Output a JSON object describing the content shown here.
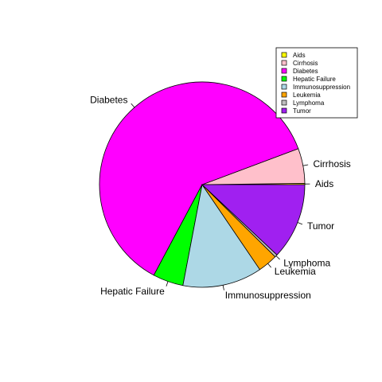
{
  "chart_data": {
    "type": "pie",
    "title": "",
    "slices": [
      {
        "label": "Aids",
        "value": 0.2,
        "color": "#FFFF00"
      },
      {
        "label": "Cirrhosis",
        "value": 5.5,
        "color": "#FFC0CB"
      },
      {
        "label": "Diabetes",
        "value": 61.5,
        "color": "#FF00FF"
      },
      {
        "label": "Hepatic Failure",
        "value": 4.8,
        "color": "#00FF00"
      },
      {
        "label": "Immunosuppression",
        "value": 12.5,
        "color": "#ADD8E6"
      },
      {
        "label": "Leukemia",
        "value": 3.1,
        "color": "#FFA500"
      },
      {
        "label": "Lymphoma",
        "value": 0.4,
        "color": "#BEBEBE"
      },
      {
        "label": "Tumor",
        "value": 12.0,
        "color": "#A020F0"
      }
    ],
    "legend": {
      "position": "top-right",
      "entries": [
        "Aids",
        "Cirrhosis",
        "Diabetes",
        "Hepatic Failure",
        "Immunosuppression",
        "Leukemia",
        "Lymphoma",
        "Tumor"
      ]
    }
  }
}
